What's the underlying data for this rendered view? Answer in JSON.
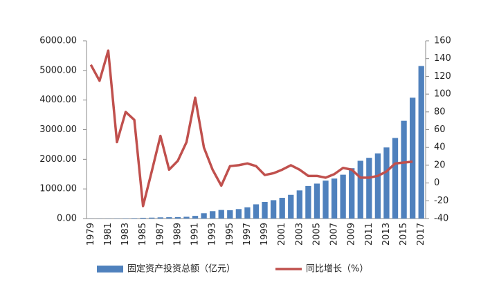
{
  "chart_data": {
    "type": "bar_line",
    "categories": [
      "1979",
      null,
      "1981",
      null,
      "1983",
      null,
      "1985",
      null,
      "1987",
      null,
      "1989",
      null,
      "1991",
      null,
      "1993",
      null,
      "1995",
      null,
      "1997",
      null,
      "1999",
      null,
      "2001",
      null,
      "2003",
      null,
      "2005",
      null,
      "2007",
      null,
      "2009",
      null,
      "2011",
      null,
      "2013",
      null,
      "2015",
      null,
      "2017"
    ],
    "series": [
      {
        "name": "固定资产投资总额（亿元）",
        "color": "#4f81bd",
        "kind": "bar",
        "values": [
          3,
          4,
          5,
          7,
          10,
          15,
          25,
          30,
          40,
          45,
          50,
          60,
          90,
          180,
          250,
          290,
          280,
          320,
          380,
          480,
          560,
          620,
          700,
          800,
          950,
          1100,
          1180,
          1280,
          1350,
          1480,
          1700,
          1950,
          2050,
          2200,
          2400,
          2720,
          3300,
          4080,
          5150
        ]
      },
      {
        "name": "同比增长（%）",
        "color": "#c0504d",
        "kind": "line",
        "axis": "y2",
        "values": [
          133,
          115,
          149,
          46,
          80,
          71,
          -26,
          13,
          53,
          15,
          25,
          46,
          96,
          40,
          15,
          -3,
          19,
          20,
          22,
          19,
          9,
          11,
          15,
          20,
          15,
          8,
          8,
          6,
          10,
          17,
          15,
          6,
          6,
          8,
          13,
          22,
          23,
          24,
          null
        ]
      }
    ],
    "ylim": [
      0,
      6000
    ],
    "yticks": [
      {
        "value": 0,
        "label": "0.00"
      },
      {
        "value": 1000,
        "label": "1000.00"
      },
      {
        "value": 2000,
        "label": "2000.00"
      },
      {
        "value": 3000,
        "label": "3000.00"
      },
      {
        "value": 4000,
        "label": "4000.00"
      },
      {
        "value": 5000,
        "label": "5000.00"
      },
      {
        "value": 6000,
        "label": "6000.00"
      }
    ],
    "y2lim": [
      -40,
      160
    ],
    "y2ticks": [
      -40,
      -20,
      0,
      20,
      40,
      60,
      80,
      100,
      120,
      140,
      160
    ],
    "legend": "bottom"
  }
}
